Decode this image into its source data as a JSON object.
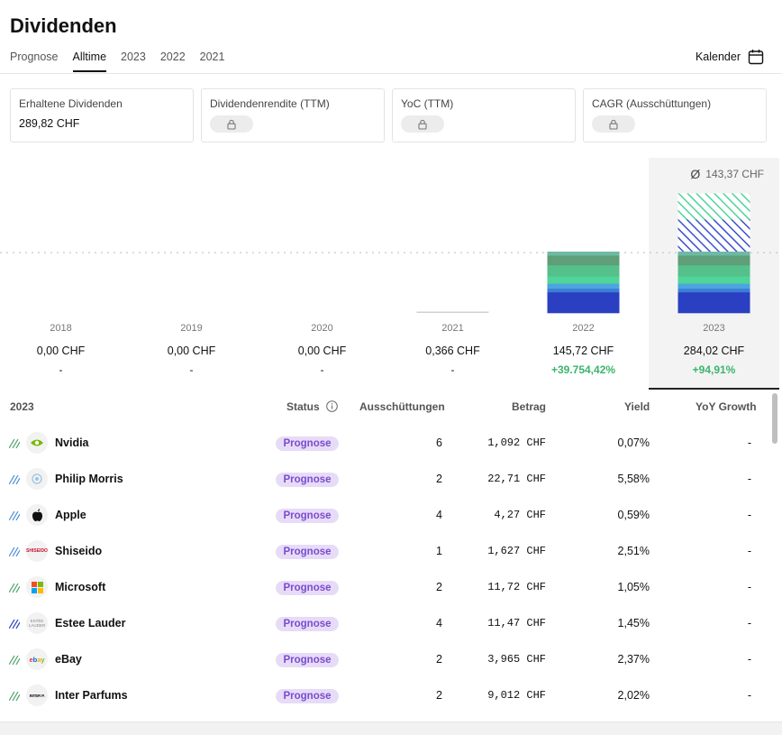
{
  "header": {
    "title": "Dividenden",
    "calendar_label": "Kalender"
  },
  "tabs": [
    {
      "label": "Prognose",
      "active": false
    },
    {
      "label": "Alltime",
      "active": true
    },
    {
      "label": "2023",
      "active": false
    },
    {
      "label": "2022",
      "active": false
    },
    {
      "label": "2021",
      "active": false
    }
  ],
  "kpis": [
    {
      "label": "Erhaltene Dividenden",
      "value": "289,82  CHF",
      "locked": false
    },
    {
      "label": "Dividendenrendite (TTM)",
      "value": "",
      "locked": true
    },
    {
      "label": "YoC (TTM)",
      "value": "",
      "locked": true
    },
    {
      "label": "CAGR (Ausschüttungen)",
      "value": "",
      "locked": true
    }
  ],
  "chart": {
    "avg_symbol": "Ø",
    "avg_label": "143,37 CHF",
    "years": [
      {
        "year": "2018",
        "amount": "0,00  CHF",
        "growth": "-"
      },
      {
        "year": "2019",
        "amount": "0,00  CHF",
        "growth": "-"
      },
      {
        "year": "2020",
        "amount": "0,00  CHF",
        "growth": "-"
      },
      {
        "year": "2021",
        "amount": "0,366  CHF",
        "growth": "-"
      },
      {
        "year": "2022",
        "amount": "145,72  CHF",
        "growth": "+39.754,42%"
      },
      {
        "year": "2023",
        "amount": "284,02  CHF",
        "growth": "+94,91%"
      }
    ]
  },
  "chart_data": {
    "type": "bar",
    "categories": [
      "2018",
      "2019",
      "2020",
      "2021",
      "2022",
      "2023"
    ],
    "values": [
      0,
      0,
      0,
      0.366,
      145.72,
      284.02
    ],
    "average": 143.37,
    "highlighted": "2023",
    "colors": {
      "primary": "#2a3fc1",
      "secondary": "#4fa3e0",
      "tertiary": "#4fd49a",
      "quaternary": "#5e9e78",
      "forecast_hatch": "#3d4fcf"
    }
  },
  "table": {
    "headers": {
      "year": "2023",
      "status": "Status",
      "payouts": "Ausschüttungen",
      "amount": "Betrag",
      "yield": "Yield",
      "yoy": "YoY Growth"
    },
    "rows": [
      {
        "name": "Nvidia",
        "status": "Prognose",
        "payouts": "6",
        "amount": "1,092  CHF",
        "yield": "0,07%",
        "yoy": "-",
        "logo": "nvidia-logo",
        "hatch": "#4fa36a"
      },
      {
        "name": "Philip Morris",
        "status": "Prognose",
        "payouts": "2",
        "amount": "22,71  CHF",
        "yield": "5,58%",
        "yoy": "-",
        "logo": "philip-morris-logo",
        "hatch": "#4a8ed6"
      },
      {
        "name": "Apple",
        "status": "Prognose",
        "payouts": "4",
        "amount": "4,27  CHF",
        "yield": "0,59%",
        "yoy": "-",
        "logo": "apple-logo",
        "hatch": "#4a8ed6"
      },
      {
        "name": "Shiseido",
        "status": "Prognose",
        "payouts": "1",
        "amount": "1,627  CHF",
        "yield": "2,51%",
        "yoy": "-",
        "logo": "shiseido-logo",
        "hatch": "#4a8ed6"
      },
      {
        "name": "Microsoft",
        "status": "Prognose",
        "payouts": "2",
        "amount": "11,72  CHF",
        "yield": "1,05%",
        "yoy": "-",
        "logo": "microsoft-logo",
        "hatch": "#4fa36a"
      },
      {
        "name": "Estee Lauder",
        "status": "Prognose",
        "payouts": "4",
        "amount": "11,47  CHF",
        "yield": "1,45%",
        "yoy": "-",
        "logo": "estee-lauder-logo",
        "hatch": "#2a3fc1"
      },
      {
        "name": "eBay",
        "status": "Prognose",
        "payouts": "2",
        "amount": "3,965  CHF",
        "yield": "2,37%",
        "yoy": "-",
        "logo": "ebay-logo",
        "hatch": "#4fa36a"
      },
      {
        "name": "Inter Parfums",
        "status": "Prognose",
        "payouts": "2",
        "amount": "9,012  CHF",
        "yield": "2,02%",
        "yoy": "-",
        "logo": "inter-parfums-logo",
        "hatch": "#4fa36a"
      }
    ]
  }
}
